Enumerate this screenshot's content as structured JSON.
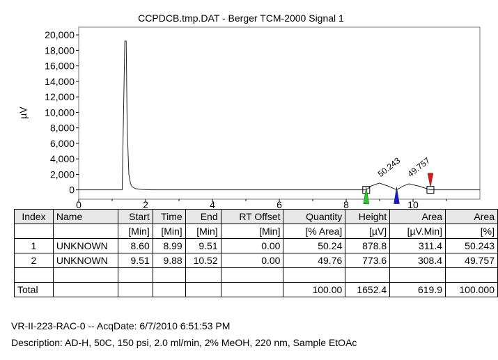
{
  "chart_data": {
    "type": "line",
    "title": "CCPDCB.tmp.DAT - Berger TCM-2000 Signal 1",
    "ylabel": "µV",
    "xlabel": "",
    "xlim": [
      0,
      12
    ],
    "ylim": [
      -1200,
      21000
    ],
    "xticks": [
      "0",
      "2",
      "4",
      "6",
      "8",
      "10"
    ],
    "yticks": [
      "0",
      "2,000",
      "4,000",
      "6,000",
      "8,000",
      "10,000",
      "12,000",
      "14,000",
      "16,000",
      "18,000",
      "20,000"
    ],
    "grid": false,
    "series": [
      {
        "x": [
          0,
          1.3,
          1.38,
          1.42,
          1.45,
          1.5,
          1.55,
          1.6,
          1.7,
          1.9,
          2.2,
          8.6,
          8.75,
          8.99,
          9.25,
          9.51,
          9.7,
          9.88,
          10.2,
          10.52,
          12
        ],
        "y": [
          0,
          0,
          19200,
          19200,
          8000,
          2000,
          800,
          400,
          150,
          50,
          0,
          0,
          500,
          880,
          500,
          0,
          480,
          775,
          450,
          0,
          0
        ]
      }
    ],
    "peak_labels": [
      {
        "x": 8.99,
        "text": "50.243"
      },
      {
        "x": 9.88,
        "text": "49.757"
      }
    ],
    "markers": [
      {
        "x": 8.6,
        "color": "#22cc22"
      },
      {
        "x": 9.51,
        "color": "#1a1acc"
      },
      {
        "x": 10.52,
        "color": "#ee1111"
      }
    ],
    "baseline_boxes": [
      8.6,
      10.52
    ]
  },
  "table": {
    "headers": [
      "Index",
      "Name",
      "Start",
      "Time",
      "End",
      "RT Offset",
      "Quantity",
      "Height",
      "Area",
      "Area"
    ],
    "units": [
      "",
      "",
      "[Min]",
      "[Min]",
      "[Min]",
      "[Min]",
      "[% Area]",
      "[µV]",
      "[µV.Min]",
      "[%]"
    ],
    "rows": [
      [
        "1",
        "UNKNOWN",
        "8.60",
        "8.99",
        "9.51",
        "0.00",
        "50.24",
        "878.8",
        "311.4",
        "50.243"
      ],
      [
        "2",
        "UNKNOWN",
        "9.51",
        "9.88",
        "10.52",
        "0.00",
        "49.76",
        "773.6",
        "308.4",
        "49.757"
      ],
      [
        "",
        "",
        "",
        "",
        "",
        "",
        "",
        "",
        "",
        ""
      ]
    ],
    "total": [
      "Total",
      "",
      "",
      "",
      "",
      "",
      "100.00",
      "1652.4",
      "619.9",
      "100.000"
    ]
  },
  "footer": {
    "line1": "VR-II-223-RAC-0 -- AcqDate: 6/7/2010 6:51:53 PM",
    "line2": "Description: AD-H, 50C, 150 psi, 2.0 ml/min, 2% MeOH, 220 nm, Sample EtOAc"
  }
}
